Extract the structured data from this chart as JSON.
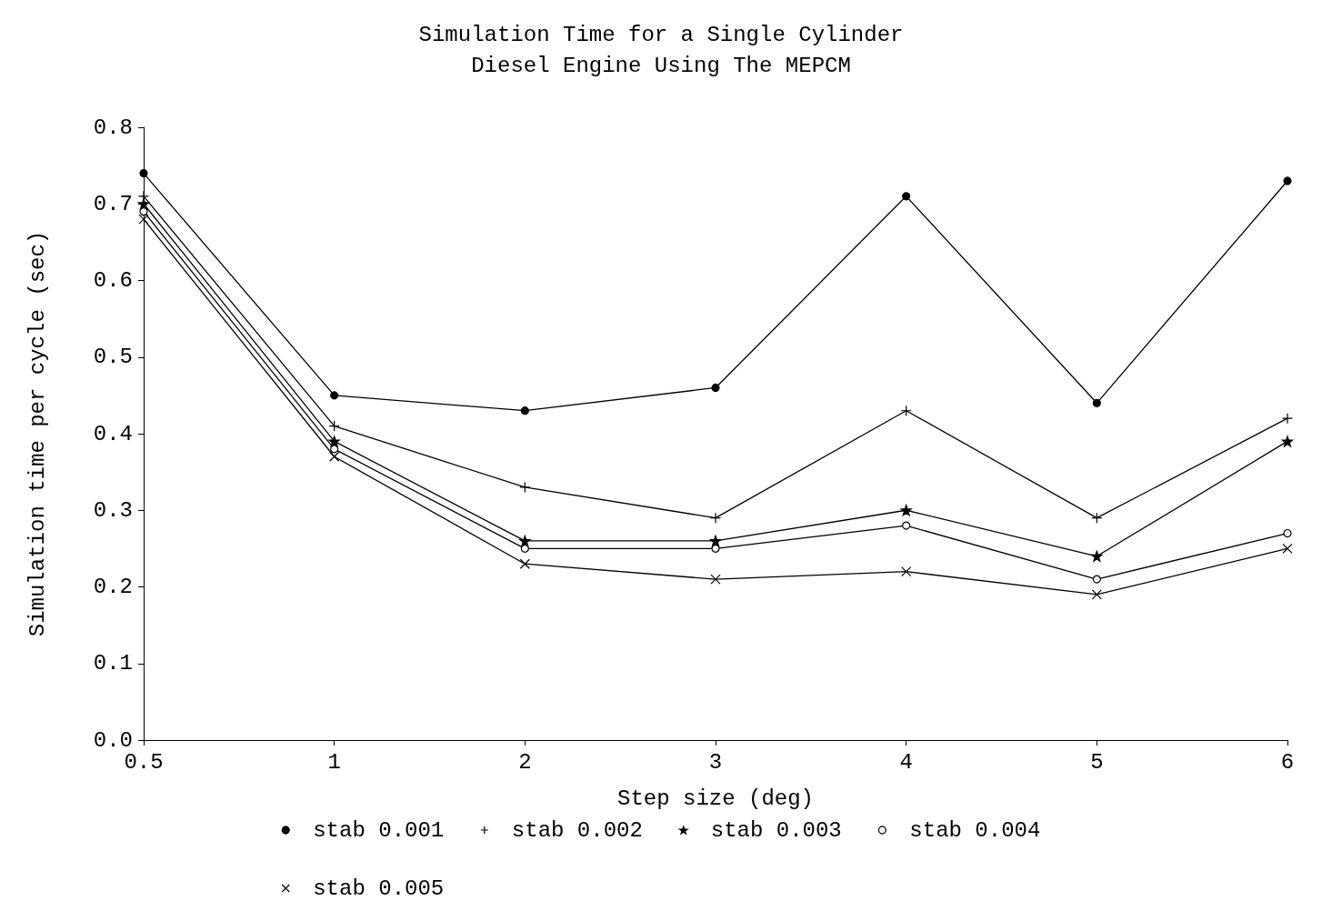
{
  "chart_data": {
    "type": "line",
    "title": "Simulation Time for a Single Cylinder\nDiesel Engine Using The MEPCM",
    "xlabel": "Step size (deg)",
    "ylabel": "Simulation time per cycle (sec)",
    "categories": [
      "0.5",
      "1",
      "2",
      "3",
      "4",
      "5",
      "6"
    ],
    "series": [
      {
        "name": "stab 0.001",
        "color": "#000000",
        "marker": "circle",
        "values": [
          0.74,
          0.45,
          0.43,
          0.46,
          0.71,
          0.44,
          0.73
        ]
      },
      {
        "name": "stab 0.002",
        "color": "#000000",
        "marker": "cross",
        "values": [
          0.71,
          0.41,
          0.33,
          0.29,
          0.43,
          0.29,
          0.42
        ]
      },
      {
        "name": "stab 0.003",
        "color": "#000000",
        "marker": "star",
        "values": [
          0.7,
          0.39,
          0.26,
          0.26,
          0.3,
          0.24,
          0.39
        ]
      },
      {
        "name": "stab 0.004",
        "color": "#000000",
        "marker": "circle",
        "values": [
          0.69,
          0.38,
          0.25,
          0.25,
          0.28,
          0.21,
          0.27
        ]
      },
      {
        "name": "stab 0.005",
        "color": "#000000",
        "marker": "cross",
        "values": [
          0.68,
          0.37,
          0.23,
          0.21,
          0.22,
          0.19,
          0.25
        ]
      }
    ],
    "ylim": [
      0,
      0.8
    ],
    "yticks": [
      {
        "value": 0,
        "label": "0.0"
      },
      {
        "value": 0.1,
        "label": "0.1"
      },
      {
        "value": 0.2,
        "label": "0.2"
      },
      {
        "value": 0.3,
        "label": "0.3"
      },
      {
        "value": 0.4,
        "label": "0.4"
      },
      {
        "value": 0.5,
        "label": "0.5"
      },
      {
        "value": 0.6,
        "label": "0.6"
      },
      {
        "value": 0.7,
        "label": "0.7"
      },
      {
        "value": 0.8,
        "label": "0.8"
      }
    ],
    "grid": false,
    "legend": "bottom",
    "line_style": "solid"
  }
}
